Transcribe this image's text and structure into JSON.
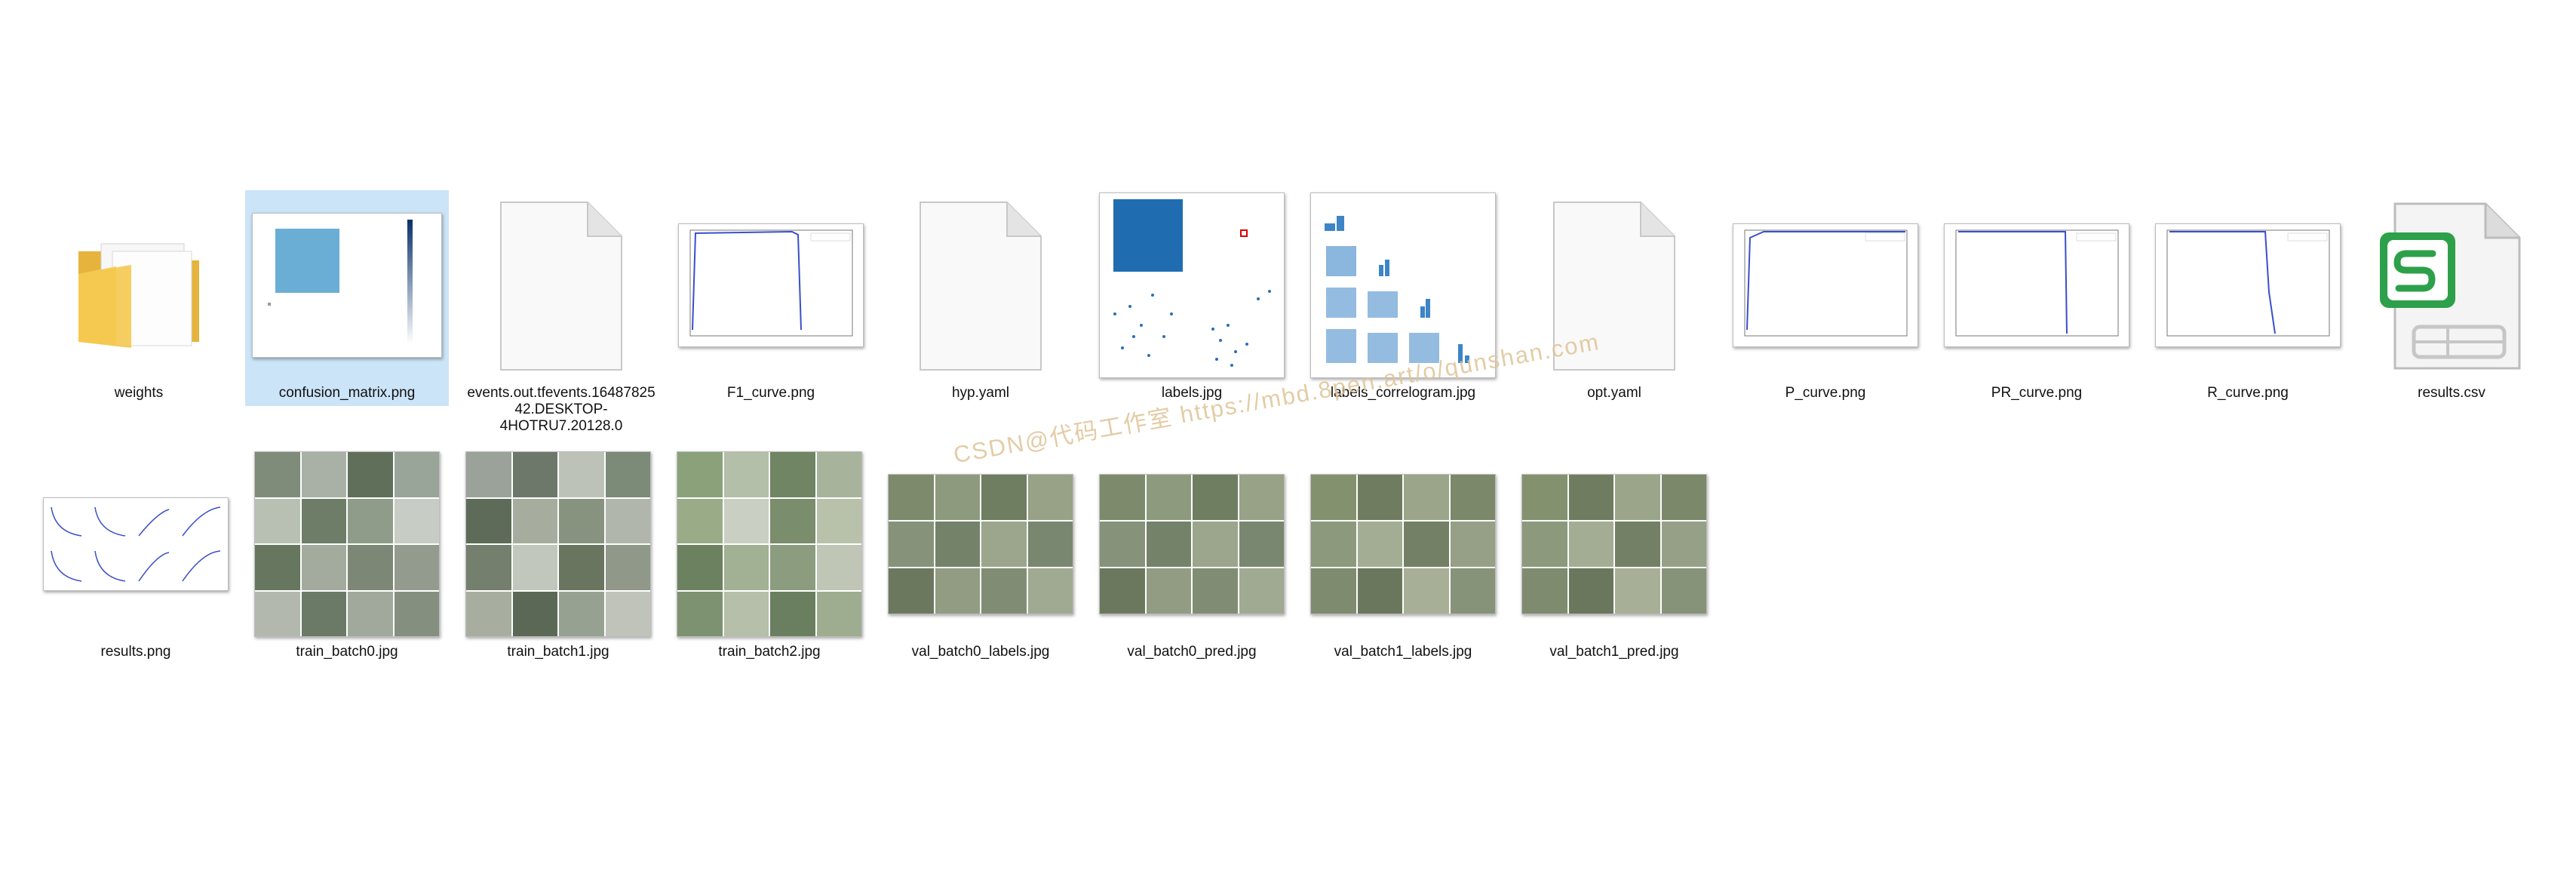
{
  "files": [
    {
      "name": "weights"
    },
    {
      "name": "confusion_matrix.png"
    },
    {
      "name": "events.out.tfevents.1648782542.DESKTOP-4HOTRU7.20128.0"
    },
    {
      "name": "F1_curve.png"
    },
    {
      "name": "hyp.yaml"
    },
    {
      "name": "labels.jpg"
    },
    {
      "name": "labels_correlogram.jpg"
    },
    {
      "name": "opt.yaml"
    },
    {
      "name": "P_curve.png"
    },
    {
      "name": "PR_curve.png"
    },
    {
      "name": "R_curve.png"
    },
    {
      "name": "results.csv"
    },
    {
      "name": "results.png"
    },
    {
      "name": "train_batch0.jpg"
    },
    {
      "name": "train_batch1.jpg"
    },
    {
      "name": "train_batch2.jpg"
    },
    {
      "name": "val_batch0_labels.jpg"
    },
    {
      "name": "val_batch0_pred.jpg"
    },
    {
      "name": "val_batch1_labels.jpg"
    },
    {
      "name": "val_batch1_pred.jpg"
    }
  ],
  "selected_file": "confusion_matrix.png",
  "watermark": "CSDN@代码工作室 https://mbd.8pen.art/o/qunshan.com",
  "colors": {
    "selection": "#cce4f7",
    "folder": "#f4c84f",
    "curve": "#3a4fc9",
    "chart_blue": "#2a7ab9",
    "wps_green": "#2da04a"
  },
  "icons": {
    "folder": "folder-icon",
    "blank": "blank-file-icon",
    "csv": "wps-spreadsheet-icon"
  }
}
